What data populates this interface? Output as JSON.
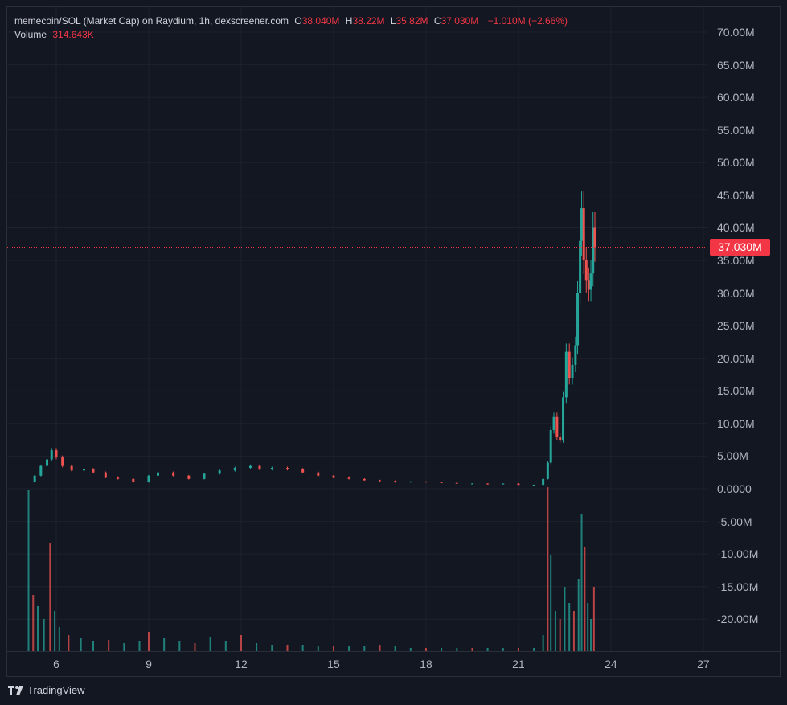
{
  "legend": {
    "symbol": "memecoin/SOL (Market Cap) on Raydium, 1h, dexscreener.com",
    "o_key": "O",
    "o_val": "38.040M",
    "h_key": "H",
    "h_val": "38.22M",
    "l_key": "L",
    "l_val": "35.82M",
    "c_key": "C",
    "c_val": "37.030M",
    "change": "−1.010M (−2.66%)",
    "volume_key": "Volume",
    "volume_val": "314.643K"
  },
  "price_tag": "37.030M",
  "branding": "TradingView",
  "colors": {
    "background": "#131722",
    "grid": "#1e222d",
    "up": "#26a69a",
    "down": "#ef5350",
    "last_price": "#f23645",
    "axis_text": "#b2b5be"
  },
  "chart_data": {
    "type": "candlestick",
    "interval": "1h",
    "y_axis": {
      "ticks": [
        "70.00M",
        "65.00M",
        "60.00M",
        "55.00M",
        "50.00M",
        "45.00M",
        "40.00M",
        "35.00M",
        "30.00M",
        "25.00M",
        "20.00M",
        "15.00M",
        "10.00M",
        "5.00M",
        "0.0000",
        "-5.00M",
        "-10.00M",
        "-15.00M",
        "-20.00M"
      ],
      "tick_values": [
        70,
        65,
        60,
        55,
        50,
        45,
        40,
        35,
        30,
        25,
        20,
        15,
        10,
        5,
        0,
        -5,
        -10,
        -15,
        -20
      ],
      "unit": "M",
      "range": [
        -25,
        72
      ]
    },
    "x_axis": {
      "ticks": [
        "6",
        "9",
        "12",
        "15",
        "18",
        "21",
        "24",
        "27"
      ],
      "tick_days": [
        6,
        9,
        12,
        15,
        18,
        21,
        24,
        27
      ],
      "range_days": [
        4.5,
        27.3
      ]
    },
    "last_price": 37.03,
    "price_path": [
      [
        5.1,
        1.0
      ],
      [
        5.3,
        2.0
      ],
      [
        5.5,
        3.5
      ],
      [
        5.7,
        4.5
      ],
      [
        5.85,
        5.9
      ],
      [
        6.0,
        4.8
      ],
      [
        6.2,
        3.5
      ],
      [
        6.5,
        2.8
      ],
      [
        6.9,
        3.0
      ],
      [
        7.2,
        2.5
      ],
      [
        7.6,
        1.8
      ],
      [
        8.0,
        1.5
      ],
      [
        8.5,
        1.0
      ],
      [
        9.0,
        2.0
      ],
      [
        9.3,
        2.5
      ],
      [
        9.8,
        2.0
      ],
      [
        10.3,
        1.5
      ],
      [
        10.8,
        2.3
      ],
      [
        11.3,
        2.8
      ],
      [
        11.8,
        3.2
      ],
      [
        12.3,
        3.5
      ],
      [
        12.6,
        3.0
      ],
      [
        13.0,
        3.2
      ],
      [
        13.5,
        3.0
      ],
      [
        14.0,
        2.5
      ],
      [
        14.5,
        2.0
      ],
      [
        15.0,
        1.8
      ],
      [
        15.5,
        1.5
      ],
      [
        16.0,
        1.3
      ],
      [
        16.5,
        1.2
      ],
      [
        17.0,
        1.0
      ],
      [
        17.5,
        1.1
      ],
      [
        18.0,
        1.0
      ],
      [
        18.5,
        0.9
      ],
      [
        19.0,
        0.8
      ],
      [
        19.5,
        0.8
      ],
      [
        20.0,
        0.7
      ],
      [
        20.5,
        0.8
      ],
      [
        21.0,
        0.6
      ],
      [
        21.5,
        0.6
      ],
      [
        21.8,
        1.5
      ],
      [
        21.95,
        4.0
      ],
      [
        22.05,
        9.0
      ],
      [
        22.15,
        11.0
      ],
      [
        22.25,
        8.0
      ],
      [
        22.35,
        7.5
      ],
      [
        22.45,
        14.0
      ],
      [
        22.55,
        21.0
      ],
      [
        22.65,
        17.0
      ],
      [
        22.75,
        19.0
      ],
      [
        22.85,
        22.0
      ],
      [
        22.92,
        30.0
      ],
      [
        23.0,
        38.0
      ],
      [
        23.05,
        43.0
      ],
      [
        23.12,
        35.0
      ],
      [
        23.2,
        32.0
      ],
      [
        23.28,
        30.5
      ],
      [
        23.35,
        33.0
      ],
      [
        23.42,
        40.0
      ],
      [
        23.48,
        37.03
      ]
    ],
    "volume": {
      "units": "relative",
      "bars": [
        [
          5.1,
          1.0
        ],
        [
          5.25,
          0.35
        ],
        [
          5.4,
          0.28
        ],
        [
          5.6,
          0.2
        ],
        [
          5.8,
          0.67
        ],
        [
          5.95,
          0.25
        ],
        [
          6.1,
          0.15
        ],
        [
          6.4,
          0.1
        ],
        [
          6.8,
          0.08
        ],
        [
          7.2,
          0.06
        ],
        [
          7.7,
          0.07
        ],
        [
          8.2,
          0.05
        ],
        [
          8.7,
          0.06
        ],
        [
          9.0,
          0.12
        ],
        [
          9.5,
          0.08
        ],
        [
          10.0,
          0.06
        ],
        [
          10.5,
          0.05
        ],
        [
          11.0,
          0.09
        ],
        [
          11.5,
          0.06
        ],
        [
          12.0,
          0.1
        ],
        [
          12.5,
          0.05
        ],
        [
          13.0,
          0.04
        ],
        [
          13.5,
          0.04
        ],
        [
          14.0,
          0.04
        ],
        [
          14.5,
          0.03
        ],
        [
          15.0,
          0.03
        ],
        [
          15.5,
          0.03
        ],
        [
          16.0,
          0.03
        ],
        [
          16.5,
          0.04
        ],
        [
          17.0,
          0.03
        ],
        [
          17.5,
          0.02
        ],
        [
          18.0,
          0.02
        ],
        [
          18.5,
          0.02
        ],
        [
          19.0,
          0.02
        ],
        [
          19.5,
          0.02
        ],
        [
          20.0,
          0.02
        ],
        [
          20.5,
          0.02
        ],
        [
          21.0,
          0.02
        ],
        [
          21.5,
          0.02
        ],
        [
          21.8,
          0.1
        ],
        [
          21.95,
          1.02
        ],
        [
          22.05,
          0.6
        ],
        [
          22.2,
          0.25
        ],
        [
          22.35,
          0.2
        ],
        [
          22.5,
          0.4
        ],
        [
          22.65,
          0.3
        ],
        [
          22.8,
          0.25
        ],
        [
          22.95,
          0.45
        ],
        [
          23.05,
          0.85
        ],
        [
          23.15,
          0.65
        ],
        [
          23.25,
          0.3
        ],
        [
          23.35,
          0.2
        ],
        [
          23.45,
          0.4
        ]
      ]
    }
  }
}
